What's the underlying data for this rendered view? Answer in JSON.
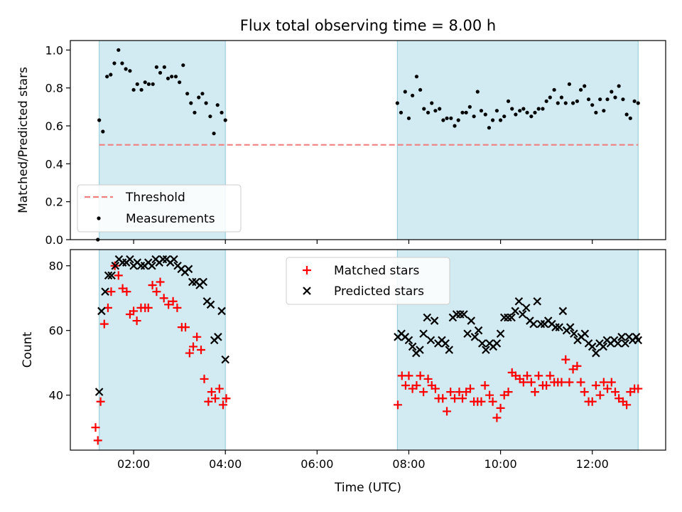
{
  "chart_data": {
    "type": "scatter",
    "title": "Flux total observing time = 8.00 h",
    "xlabel": "Time (UTC)",
    "x_ticks": [
      "02:00",
      "04:00",
      "06:00",
      "08:00",
      "10:00",
      "12:00"
    ],
    "x_tick_hours": [
      2,
      4,
      6,
      8,
      10,
      12
    ],
    "xlim_hours": [
      0.62,
      13.6
    ],
    "shaded_intervals_hours": [
      [
        1.25,
        4.0
      ],
      [
        7.75,
        13.0
      ]
    ],
    "shade_color": "#add8e6",
    "panels": [
      {
        "ylabel": "Matched/Predicted stars",
        "ylim": [
          0,
          1.05
        ],
        "y_ticks": [
          "0.0",
          "0.2",
          "0.4",
          "0.6",
          "0.8",
          "1.0"
        ],
        "y_tick_values": [
          0,
          0.2,
          0.4,
          0.6,
          0.8,
          1.0
        ],
        "threshold": {
          "name": "Threshold",
          "value": 0.5,
          "x_range_hours": [
            1.25,
            13.0
          ],
          "color": "#f08080"
        },
        "measurements": {
          "name": "Measurements",
          "color": "#000000",
          "x_hours": [
            1.22,
            1.25,
            1.33,
            1.42,
            1.5,
            1.58,
            1.67,
            1.75,
            1.83,
            1.92,
            2.0,
            2.08,
            2.17,
            2.25,
            2.33,
            2.42,
            2.5,
            2.58,
            2.67,
            2.75,
            2.83,
            2.92,
            3.0,
            3.08,
            3.17,
            3.25,
            3.33,
            3.42,
            3.5,
            3.58,
            3.67,
            3.75,
            3.83,
            3.92,
            4.0,
            7.75,
            7.83,
            7.92,
            8.0,
            8.08,
            8.17,
            8.25,
            8.33,
            8.42,
            8.5,
            8.58,
            8.67,
            8.75,
            8.83,
            8.92,
            9.0,
            9.08,
            9.17,
            9.25,
            9.33,
            9.42,
            9.5,
            9.58,
            9.67,
            9.75,
            9.83,
            9.92,
            10.0,
            10.08,
            10.17,
            10.25,
            10.33,
            10.42,
            10.5,
            10.58,
            10.67,
            10.75,
            10.83,
            10.92,
            11.0,
            11.08,
            11.17,
            11.25,
            11.33,
            11.42,
            11.5,
            11.58,
            11.67,
            11.75,
            11.83,
            11.92,
            12.0,
            12.08,
            12.17,
            12.25,
            12.33,
            12.42,
            12.5,
            12.58,
            12.67,
            12.75,
            12.83,
            12.92,
            13.0
          ],
          "y": [
            0.0,
            0.63,
            0.57,
            0.86,
            0.87,
            0.93,
            1.0,
            0.93,
            0.9,
            0.89,
            0.79,
            0.82,
            0.79,
            0.83,
            0.82,
            0.82,
            0.91,
            0.88,
            0.91,
            0.85,
            0.86,
            0.86,
            0.83,
            0.92,
            0.77,
            0.72,
            0.67,
            0.75,
            0.77,
            0.72,
            0.65,
            0.56,
            0.71,
            0.67,
            0.63,
            0.72,
            0.67,
            0.78,
            0.64,
            0.76,
            0.86,
            0.79,
            0.69,
            0.67,
            0.72,
            0.68,
            0.69,
            0.63,
            0.64,
            0.64,
            0.6,
            0.63,
            0.67,
            0.67,
            0.7,
            0.65,
            0.78,
            0.68,
            0.66,
            0.59,
            0.63,
            0.68,
            0.63,
            0.65,
            0.73,
            0.69,
            0.66,
            0.68,
            0.69,
            0.67,
            0.65,
            0.67,
            0.69,
            0.69,
            0.73,
            0.75,
            0.79,
            0.72,
            0.75,
            0.72,
            0.82,
            0.72,
            0.73,
            0.79,
            0.81,
            0.74,
            0.71,
            0.67,
            0.74,
            0.68,
            0.74,
            0.78,
            0.75,
            0.81,
            0.74,
            0.66,
            0.64,
            0.73,
            0.72
          ]
        }
      },
      {
        "ylabel": "Count",
        "ylim": [
          23,
          85
        ],
        "y_ticks": [
          "40",
          "60",
          "80"
        ],
        "y_tick_values": [
          40,
          60,
          80
        ],
        "matched": {
          "name": "Matched stars",
          "color": "#ff0000",
          "x_hours": [
            1.17,
            1.22,
            1.28,
            1.36,
            1.44,
            1.51,
            1.59,
            1.67,
            1.76,
            1.85,
            1.92,
            2.0,
            2.07,
            2.16,
            2.25,
            2.32,
            2.41,
            2.5,
            2.58,
            2.66,
            2.76,
            2.86,
            2.95,
            3.05,
            3.13,
            3.22,
            3.3,
            3.38,
            3.47,
            3.54,
            3.63,
            3.7,
            3.78,
            3.87,
            3.95,
            4.02,
            7.76,
            7.85,
            7.93,
            8.0,
            8.08,
            8.17,
            8.25,
            8.32,
            8.42,
            8.5,
            8.58,
            8.65,
            8.74,
            8.83,
            8.91,
            9.0,
            9.1,
            9.17,
            9.25,
            9.34,
            9.42,
            9.5,
            9.58,
            9.66,
            9.76,
            9.83,
            9.92,
            10.0,
            10.08,
            10.17,
            10.25,
            10.33,
            10.42,
            10.5,
            10.58,
            10.67,
            10.75,
            10.83,
            10.92,
            11.0,
            11.08,
            11.17,
            11.25,
            11.33,
            11.42,
            11.5,
            11.58,
            11.67,
            11.75,
            11.83,
            11.92,
            12.0,
            12.08,
            12.17,
            12.25,
            12.33,
            12.42,
            12.5,
            12.58,
            12.67,
            12.75,
            12.83,
            12.92,
            13.0
          ],
          "y": [
            30,
            26,
            38,
            62,
            67,
            72,
            80,
            77,
            73,
            72,
            65,
            66,
            63,
            67,
            67,
            67,
            74,
            72,
            75,
            70,
            68,
            69,
            67,
            61,
            61,
            53,
            55,
            58,
            54,
            45,
            38,
            41,
            39,
            42,
            37,
            39,
            37,
            46,
            43,
            46,
            42,
            43,
            46,
            41,
            45,
            43,
            42,
            39,
            39,
            35,
            41,
            39,
            41,
            39,
            41,
            42,
            38,
            38,
            38,
            43,
            40,
            38,
            33,
            36,
            40,
            41,
            47,
            46,
            45,
            44,
            46,
            44,
            41,
            46,
            43,
            43,
            46,
            44,
            44,
            44,
            51,
            44,
            48,
            49,
            44,
            41,
            38,
            38,
            43,
            40,
            44,
            42,
            44,
            41,
            39,
            38,
            37,
            41,
            42,
            42
          ],
          "marker": "+"
        },
        "predicted": {
          "name": "Predicted stars",
          "color": "#000000",
          "x_hours": [
            1.25,
            1.3,
            1.38,
            1.45,
            1.52,
            1.6,
            1.68,
            1.76,
            1.84,
            1.92,
            2.0,
            2.08,
            2.16,
            2.24,
            2.32,
            2.4,
            2.48,
            2.56,
            2.64,
            2.72,
            2.8,
            2.88,
            2.96,
            3.04,
            3.12,
            3.2,
            3.28,
            3.36,
            3.44,
            3.52,
            3.6,
            3.68,
            3.76,
            3.84,
            3.92,
            4.0,
            7.76,
            7.84,
            7.92,
            8.0,
            8.08,
            8.16,
            8.24,
            8.32,
            8.4,
            8.48,
            8.56,
            8.64,
            8.72,
            8.8,
            8.88,
            8.96,
            9.04,
            9.12,
            9.2,
            9.28,
            9.36,
            9.44,
            9.52,
            9.6,
            9.68,
            9.76,
            9.84,
            9.92,
            10.0,
            10.08,
            10.16,
            10.24,
            10.32,
            10.4,
            10.48,
            10.56,
            10.64,
            10.72,
            10.8,
            10.88,
            10.96,
            11.04,
            11.12,
            11.2,
            11.28,
            11.36,
            11.44,
            11.52,
            11.6,
            11.68,
            11.76,
            11.84,
            11.92,
            12.0,
            12.08,
            12.16,
            12.24,
            12.32,
            12.4,
            12.48,
            12.56,
            12.64,
            12.72,
            12.8,
            12.88,
            12.96,
            13.0
          ],
          "y": [
            41,
            66,
            72,
            77,
            77,
            80,
            82,
            81,
            81,
            82,
            80,
            81,
            80,
            80,
            81,
            80,
            82,
            81,
            82,
            82,
            81,
            82,
            80,
            79,
            78,
            79,
            75,
            75,
            74,
            75,
            69,
            68,
            57,
            58,
            66,
            51,
            58,
            59,
            58,
            57,
            55,
            53,
            54,
            59,
            64,
            57,
            63,
            56,
            57,
            56,
            54,
            64,
            65,
            65,
            65,
            59,
            63,
            58,
            60,
            56,
            54,
            56,
            55,
            56,
            59,
            64,
            64,
            64,
            66,
            69,
            65,
            67,
            63,
            62,
            69,
            62,
            62,
            63,
            62,
            61,
            61,
            66,
            60,
            61,
            59,
            57,
            58,
            59,
            56,
            55,
            53,
            56,
            55,
            57,
            56,
            57,
            56,
            58,
            56,
            58,
            57,
            58,
            57
          ]
        }
      }
    ]
  }
}
